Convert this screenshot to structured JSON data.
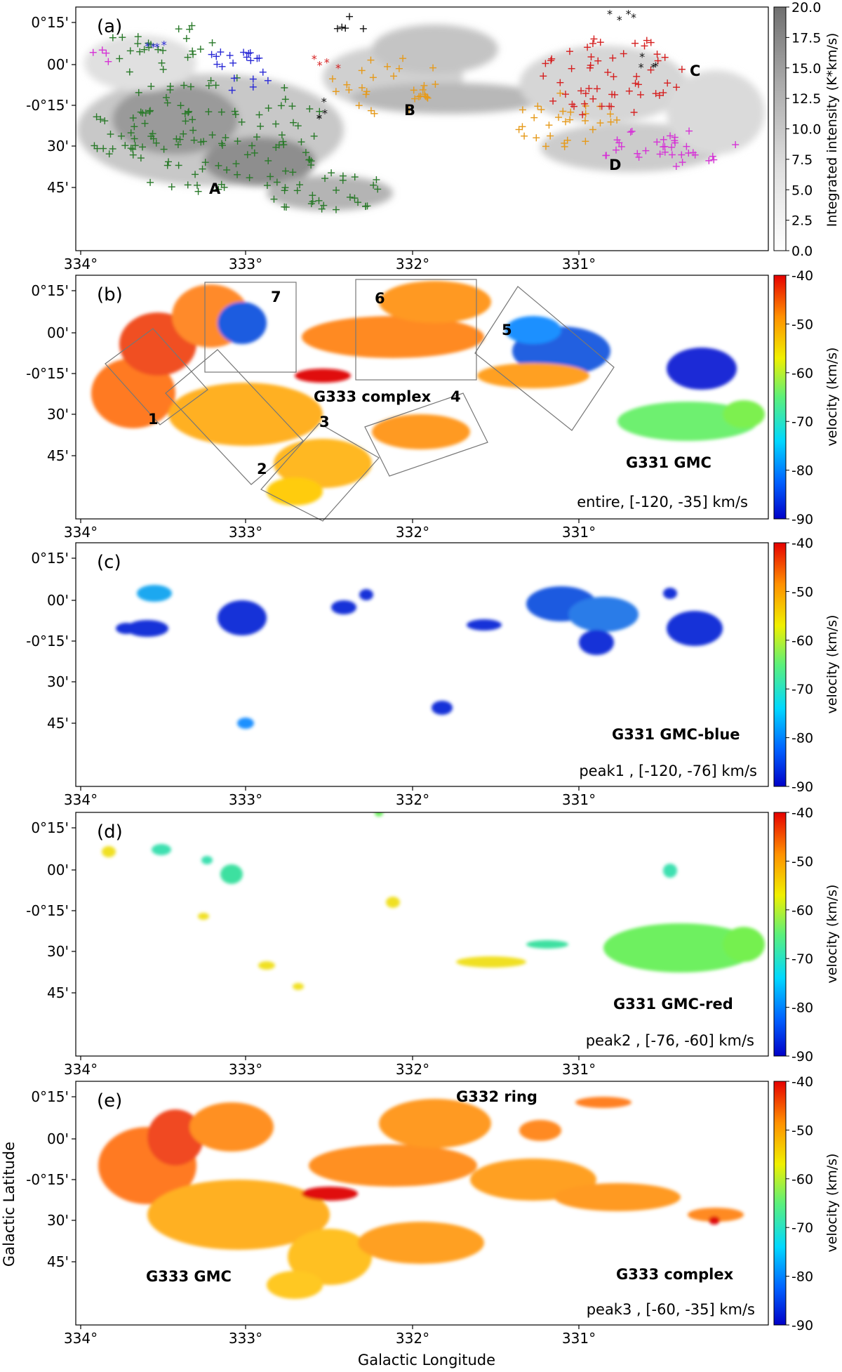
{
  "figure": {
    "xlabel": "Galactic Longitude",
    "ylabel": "Galactic Latitude"
  },
  "chart_data": [
    {
      "panel": "(a)",
      "type": "heatmap",
      "x_ticks": [
        "334°",
        "333°",
        "332°",
        "331°"
      ],
      "y_ticks": [
        "0°15'",
        "00'",
        "-0°15'",
        "30'",
        "45'"
      ],
      "colorbar": {
        "label": "Integrated intensity (K*km/s)",
        "ticks": [
          "20.0",
          "17.5",
          "15.0",
          "12.5",
          "10.0",
          "7.5",
          "5.0",
          "2.5",
          "0.0"
        ],
        "colors": [
          "#ffffff",
          "#dcdcdc",
          "#b0b0b0",
          "#8a8a8a",
          "#6e6e6e"
        ]
      },
      "labels": [
        "A",
        "B",
        "C",
        "D"
      ],
      "marker_colors": [
        "#2a7a2a",
        "#e69a1a",
        "#d62020",
        "#d633d6",
        "#2a2ad6",
        "#111111"
      ]
    },
    {
      "panel": "(b)",
      "type": "heatmap",
      "x_ticks": [
        "334°",
        "333°",
        "332°",
        "331°"
      ],
      "y_ticks": [
        "0°15'",
        "00'",
        "-0°15'",
        "30'",
        "45'"
      ],
      "colorbar": {
        "label": "velocity (km/s)",
        "ticks": [
          "-40",
          "-50",
          "-60",
          "-70",
          "-80",
          "-90"
        ]
      },
      "box_labels": [
        "1",
        "2",
        "3",
        "4",
        "5",
        "6",
        "7"
      ],
      "labels": [
        "G333 complex",
        "G331 GMC"
      ],
      "note": "entire, [-120, -35] km/s"
    },
    {
      "panel": "(c)",
      "type": "heatmap",
      "x_ticks": [
        "334°",
        "333°",
        "332°",
        "331°"
      ],
      "y_ticks": [
        "0°15'",
        "00'",
        "-0°15'",
        "30'",
        "45'"
      ],
      "colorbar": {
        "label": "velocity (km/s)",
        "ticks": [
          "-40",
          "-50",
          "-60",
          "-70",
          "-80",
          "-90"
        ]
      },
      "labels": [
        "G331 GMC-blue"
      ],
      "note": "peak1 , [-120, -76] km/s"
    },
    {
      "panel": "(d)",
      "type": "heatmap",
      "x_ticks": [
        "334°",
        "333°",
        "332°",
        "331°"
      ],
      "y_ticks": [
        "0°15'",
        "00'",
        "-0°15'",
        "30'",
        "45'"
      ],
      "colorbar": {
        "label": "velocity (km/s)",
        "ticks": [
          "-40",
          "-50",
          "-60",
          "-70",
          "-80",
          "-90"
        ]
      },
      "labels": [
        "G331 GMC-red"
      ],
      "note": "peak2 , [-76, -60] km/s"
    },
    {
      "panel": "(e)",
      "type": "heatmap",
      "x_ticks": [
        "334°",
        "333°",
        "332°",
        "331°"
      ],
      "y_ticks": [
        "0°15'",
        "00'",
        "-0°15'",
        "30'",
        "45'"
      ],
      "colorbar": {
        "label": "velocity (km/s)",
        "ticks": [
          "-40",
          "-50",
          "-60",
          "-70",
          "-80",
          "-90"
        ]
      },
      "labels": [
        "G332 ring",
        "G333 GMC",
        "G333 complex"
      ],
      "note": "peak3 , [-60, -35] km/s"
    }
  ]
}
